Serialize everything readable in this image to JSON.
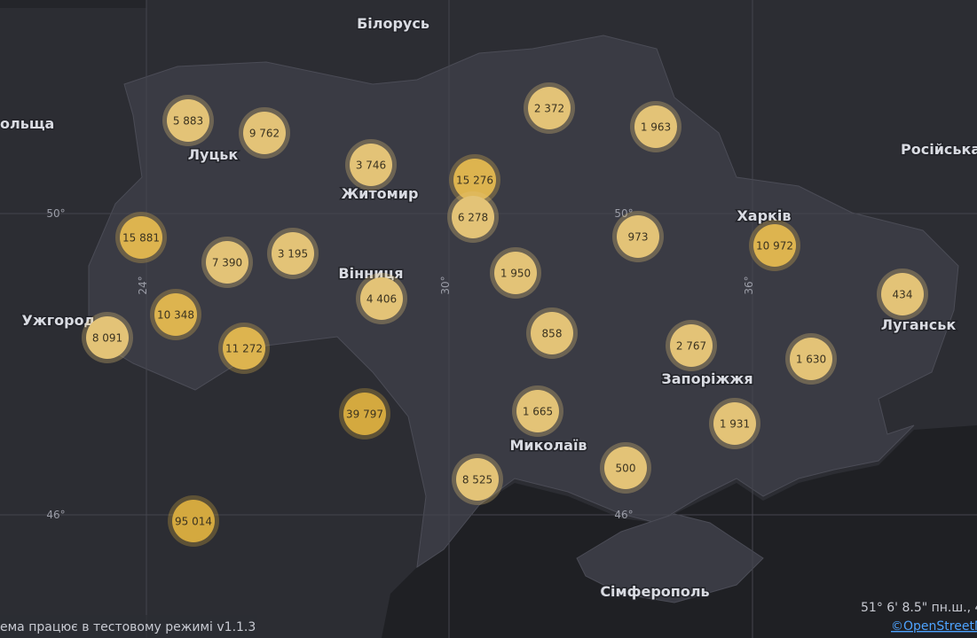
{
  "places": [
    "Білорусь",
    "ольща",
    "Луцьк",
    "Житомир",
    "Вінниця",
    "Ужгород",
    "Харків",
    "Луганськ",
    "Запоріжжя",
    "Миколаїв",
    "Сімферополь",
    "Російська"
  ],
  "grid_labels": [
    "50°",
    "46°",
    "24°",
    "30°",
    "36°",
    "50°",
    "46°"
  ],
  "clusters": [
    "5 883",
    "9 762",
    "3 746",
    "15 276",
    "6 278",
    "2 372",
    "1 963",
    "15 881",
    "7 390",
    "3 195",
    "4 406",
    "1 950",
    "973",
    "10 972",
    "434",
    "10 348",
    "8 091",
    "11 272",
    "858",
    "2 767",
    "1 630",
    "39 797",
    "1 665",
    "1 931",
    "500",
    "8 525",
    "95 014"
  ],
  "footer": {
    "status": "ема працює в тестовому режимі v1.1.3",
    "coordinates": "51° 6' 8.5\" пн.ш., 4",
    "attribution": "©OpenStreetM"
  }
}
